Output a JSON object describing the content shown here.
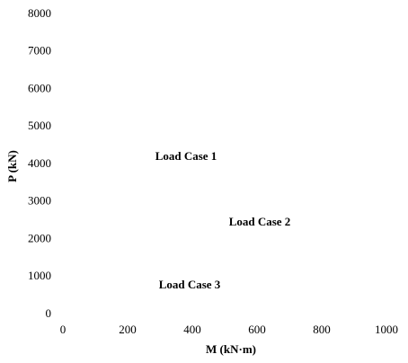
{
  "chart_data": {
    "type": "scatter",
    "xlabel": "M (kN·m)",
    "ylabel": "P (kN)",
    "xlim": [
      0,
      1000
    ],
    "xticks": [
      0,
      200,
      400,
      600,
      800,
      1000
    ],
    "ylim": [
      0,
      8000
    ],
    "yticks": [
      0,
      1000,
      2000,
      3000,
      4000,
      5000,
      6000,
      7000,
      8000
    ],
    "annotations": [
      "Load Case 1",
      "Load Case 2",
      "Load Case 3"
    ]
  }
}
